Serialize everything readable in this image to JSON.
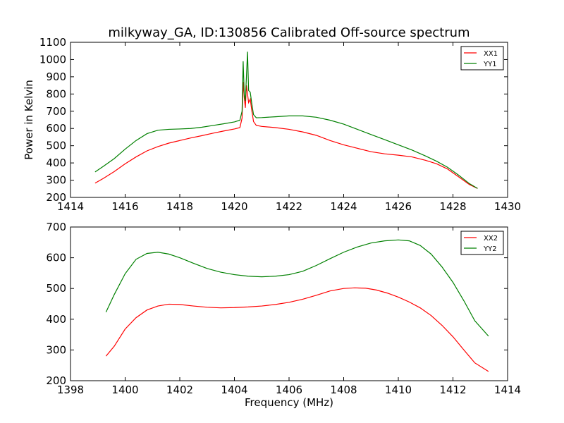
{
  "figure": {
    "title": "milkyway_GA, ID:130856 Calibrated Off-source spectrum"
  },
  "colors": {
    "series1": "#ff0000",
    "series2": "#008000",
    "axis": "#000000",
    "background": "#ffffff"
  },
  "chart_data": [
    {
      "type": "line",
      "title": "milkyway_GA, ID:130856 Calibrated Off-source spectrum",
      "xlabel": "",
      "ylabel": "Power in Kelvin",
      "xlim": [
        1414,
        1430
      ],
      "ylim": [
        200,
        1100
      ],
      "xticks": [
        1414,
        1416,
        1418,
        1420,
        1422,
        1424,
        1426,
        1428,
        1430
      ],
      "yticks": [
        200,
        300,
        400,
        500,
        600,
        700,
        800,
        900,
        1000,
        1100
      ],
      "grid": false,
      "legend_position": "top-right",
      "series": [
        {
          "name": "XX1",
          "color": "#ff0000",
          "points": [
            [
              1414.9,
              283
            ],
            [
              1415.2,
              310
            ],
            [
              1415.6,
              350
            ],
            [
              1416.0,
              395
            ],
            [
              1416.4,
              435
            ],
            [
              1416.8,
              470
            ],
            [
              1417.2,
              495
            ],
            [
              1417.6,
              515
            ],
            [
              1418.0,
              530
            ],
            [
              1418.4,
              545
            ],
            [
              1418.8,
              558
            ],
            [
              1419.2,
              572
            ],
            [
              1419.6,
              585
            ],
            [
              1420.0,
              597
            ],
            [
              1420.2,
              605
            ],
            [
              1420.28,
              660
            ],
            [
              1420.32,
              870
            ],
            [
              1420.36,
              780
            ],
            [
              1420.4,
              720
            ],
            [
              1420.44,
              850
            ],
            [
              1420.48,
              800
            ],
            [
              1420.52,
              750
            ],
            [
              1420.58,
              770
            ],
            [
              1420.64,
              700
            ],
            [
              1420.7,
              640
            ],
            [
              1420.8,
              618
            ],
            [
              1421.0,
              612
            ],
            [
              1421.5,
              605
            ],
            [
              1422.0,
              595
            ],
            [
              1422.5,
              580
            ],
            [
              1423.0,
              560
            ],
            [
              1423.5,
              530
            ],
            [
              1424.0,
              505
            ],
            [
              1424.5,
              485
            ],
            [
              1425.0,
              465
            ],
            [
              1425.5,
              453
            ],
            [
              1426.0,
              445
            ],
            [
              1426.5,
              435
            ],
            [
              1427.0,
              415
            ],
            [
              1427.4,
              395
            ],
            [
              1427.8,
              365
            ],
            [
              1428.2,
              320
            ],
            [
              1428.6,
              275
            ],
            [
              1428.9,
              252
            ]
          ]
        },
        {
          "name": "YY1",
          "color": "#008000",
          "points": [
            [
              1414.9,
              348
            ],
            [
              1415.2,
              380
            ],
            [
              1415.6,
              425
            ],
            [
              1416.0,
              480
            ],
            [
              1416.4,
              530
            ],
            [
              1416.8,
              570
            ],
            [
              1417.2,
              590
            ],
            [
              1417.6,
              595
            ],
            [
              1418.0,
              597
            ],
            [
              1418.4,
              600
            ],
            [
              1418.8,
              607
            ],
            [
              1419.2,
              617
            ],
            [
              1419.6,
              627
            ],
            [
              1420.0,
              638
            ],
            [
              1420.2,
              648
            ],
            [
              1420.28,
              700
            ],
            [
              1420.32,
              990
            ],
            [
              1420.36,
              800
            ],
            [
              1420.4,
              760
            ],
            [
              1420.44,
              900
            ],
            [
              1420.48,
              1045
            ],
            [
              1420.52,
              820
            ],
            [
              1420.58,
              810
            ],
            [
              1420.64,
              740
            ],
            [
              1420.7,
              680
            ],
            [
              1420.8,
              662
            ],
            [
              1421.0,
              663
            ],
            [
              1421.5,
              668
            ],
            [
              1422.0,
              673
            ],
            [
              1422.5,
              673
            ],
            [
              1423.0,
              665
            ],
            [
              1423.5,
              648
            ],
            [
              1424.0,
              625
            ],
            [
              1424.5,
              595
            ],
            [
              1425.0,
              565
            ],
            [
              1425.5,
              535
            ],
            [
              1426.0,
              505
            ],
            [
              1426.5,
              475
            ],
            [
              1427.0,
              440
            ],
            [
              1427.4,
              410
            ],
            [
              1427.8,
              375
            ],
            [
              1428.2,
              330
            ],
            [
              1428.6,
              280
            ],
            [
              1428.9,
              252
            ]
          ]
        }
      ]
    },
    {
      "type": "line",
      "title": "",
      "xlabel": "Frequency (MHz)",
      "ylabel": "",
      "xlim": [
        1398,
        1414
      ],
      "ylim": [
        200,
        700
      ],
      "xticks": [
        1398,
        1400,
        1402,
        1404,
        1406,
        1408,
        1410,
        1412,
        1414
      ],
      "yticks": [
        200,
        300,
        400,
        500,
        600,
        700
      ],
      "grid": false,
      "legend_position": "top-right",
      "series": [
        {
          "name": "XX2",
          "color": "#ff0000",
          "points": [
            [
              1399.3,
              280
            ],
            [
              1399.6,
              312
            ],
            [
              1400.0,
              368
            ],
            [
              1400.4,
              405
            ],
            [
              1400.8,
              430
            ],
            [
              1401.2,
              443
            ],
            [
              1401.6,
              449
            ],
            [
              1402.0,
              448
            ],
            [
              1402.5,
              443
            ],
            [
              1403.0,
              439
            ],
            [
              1403.5,
              437
            ],
            [
              1404.0,
              438
            ],
            [
              1404.5,
              440
            ],
            [
              1405.0,
              443
            ],
            [
              1405.5,
              448
            ],
            [
              1406.0,
              455
            ],
            [
              1406.5,
              465
            ],
            [
              1407.0,
              478
            ],
            [
              1407.5,
              492
            ],
            [
              1408.0,
              500
            ],
            [
              1408.4,
              502
            ],
            [
              1408.8,
              501
            ],
            [
              1409.2,
              495
            ],
            [
              1409.6,
              485
            ],
            [
              1410.0,
              472
            ],
            [
              1410.4,
              456
            ],
            [
              1410.8,
              437
            ],
            [
              1411.2,
              412
            ],
            [
              1411.6,
              380
            ],
            [
              1412.0,
              343
            ],
            [
              1412.4,
              300
            ],
            [
              1412.8,
              258
            ],
            [
              1413.3,
              230
            ]
          ]
        },
        {
          "name": "YY2",
          "color": "#008000",
          "points": [
            [
              1399.3,
              423
            ],
            [
              1399.6,
              480
            ],
            [
              1400.0,
              548
            ],
            [
              1400.4,
              595
            ],
            [
              1400.8,
              614
            ],
            [
              1401.2,
              618
            ],
            [
              1401.6,
              612
            ],
            [
              1402.0,
              600
            ],
            [
              1402.5,
              582
            ],
            [
              1403.0,
              565
            ],
            [
              1403.5,
              553
            ],
            [
              1404.0,
              545
            ],
            [
              1404.5,
              540
            ],
            [
              1405.0,
              538
            ],
            [
              1405.5,
              540
            ],
            [
              1406.0,
              545
            ],
            [
              1406.5,
              556
            ],
            [
              1407.0,
              575
            ],
            [
              1407.5,
              597
            ],
            [
              1408.0,
              618
            ],
            [
              1408.5,
              635
            ],
            [
              1409.0,
              648
            ],
            [
              1409.5,
              655
            ],
            [
              1410.0,
              658
            ],
            [
              1410.4,
              655
            ],
            [
              1410.8,
              640
            ],
            [
              1411.2,
              612
            ],
            [
              1411.6,
              570
            ],
            [
              1412.0,
              520
            ],
            [
              1412.4,
              460
            ],
            [
              1412.8,
              395
            ],
            [
              1413.3,
              345
            ]
          ]
        }
      ]
    }
  ]
}
